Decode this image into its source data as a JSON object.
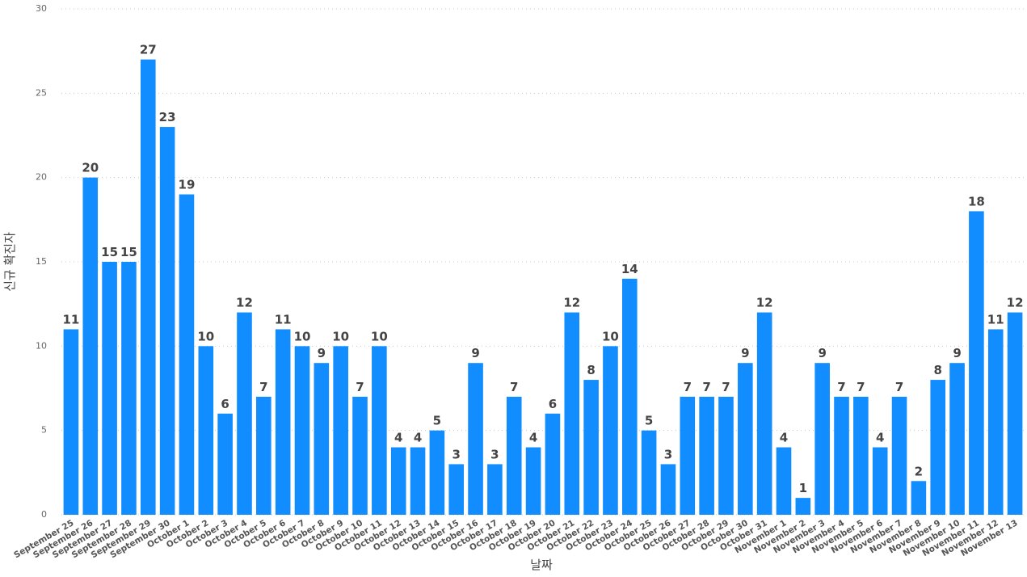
{
  "chart_data": {
    "type": "bar",
    "x_label": "날짜",
    "y_label": "신규 확진자",
    "categories": [
      "September 25",
      "September 26",
      "September 27",
      "September 28",
      "September 29",
      "September 30",
      "October 1",
      "October 2",
      "October 3",
      "October 4",
      "October 5",
      "October 6",
      "October 7",
      "October 8",
      "October 9",
      "October 10",
      "October 11",
      "October 12",
      "October 13",
      "October 14",
      "October 15",
      "October 16",
      "October 17",
      "October 18",
      "October 19",
      "October 20",
      "October 21",
      "October 22",
      "October 23",
      "October 24",
      "October 25",
      "October 26",
      "October 27",
      "October 28",
      "October 29",
      "October 30",
      "October 31",
      "November 1",
      "November 2",
      "November 3",
      "November 4",
      "November 5",
      "November 6",
      "November 7",
      "November 8",
      "November 9",
      "November 10",
      "November 11",
      "November 12",
      "November 13"
    ],
    "values": [
      11,
      20,
      15,
      15,
      27,
      23,
      19,
      10,
      6,
      12,
      7,
      11,
      10,
      9,
      10,
      7,
      10,
      4,
      4,
      5,
      3,
      9,
      3,
      7,
      4,
      6,
      12,
      8,
      10,
      14,
      5,
      3,
      7,
      7,
      7,
      9,
      12,
      4,
      1,
      9,
      7,
      7,
      4,
      7,
      2,
      8,
      9,
      18,
      11,
      12
    ],
    "color": "#118dff",
    "ylim": [
      0,
      30
    ],
    "yticks": [
      0,
      5,
      10,
      15,
      20,
      25,
      30
    ],
    "grid": true
  }
}
